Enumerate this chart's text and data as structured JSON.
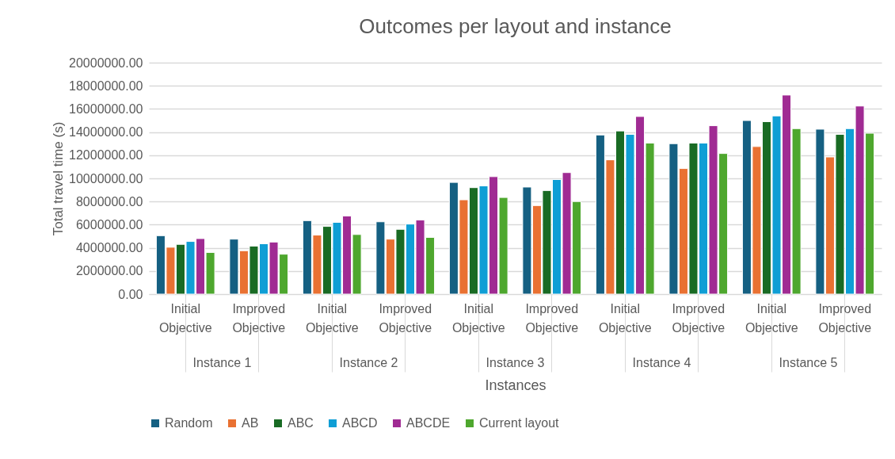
{
  "chart_data": {
    "type": "bar",
    "title": "Outcomes per layout and instance",
    "xlabel": "Instances",
    "ylabel": "Total travel time (s)",
    "categories": [
      "Initial Objective",
      "Improved Objective",
      "Initial Objective",
      "Improved Objective",
      "Initial Objective",
      "Improved Objective",
      "Initial Objective",
      "Improved Objective",
      "Initial Objective",
      "Improved Objective"
    ],
    "annotations": [
      "Instance 1",
      "Instance 2",
      "Instance 3",
      "Instance 4",
      "Instance  5"
    ],
    "series": [
      {
        "name": "Random",
        "color": "#156082",
        "values": [
          5050000,
          4750000,
          6350000,
          6250000,
          9650000,
          9250000,
          13750000,
          13000000,
          15000000,
          14250000
        ]
      },
      {
        "name": "AB",
        "color": "#e97132",
        "values": [
          4050000,
          3750000,
          5100000,
          4750000,
          8150000,
          7650000,
          11600000,
          10850000,
          12750000,
          11850000
        ]
      },
      {
        "name": "ABC",
        "color": "#196b24",
        "values": [
          4300000,
          4150000,
          5850000,
          5600000,
          9200000,
          8950000,
          14100000,
          13050000,
          14900000,
          13800000
        ]
      },
      {
        "name": "ABCD",
        "color": "#0f9ed5",
        "values": [
          4550000,
          4350000,
          6200000,
          6050000,
          9350000,
          9900000,
          13800000,
          13050000,
          15400000,
          14300000
        ]
      },
      {
        "name": "ABCDE",
        "color": "#a02b93",
        "values": [
          4800000,
          4500000,
          6750000,
          6400000,
          10150000,
          10500000,
          15350000,
          14550000,
          17200000,
          16250000
        ]
      },
      {
        "name": "Current layout",
        "color": "#4ea72e",
        "values": [
          3600000,
          3450000,
          5150000,
          4900000,
          8350000,
          8000000,
          13050000,
          12150000,
          14300000,
          13900000
        ]
      }
    ],
    "ylim": [
      0,
      20000000
    ],
    "yticks": [
      {
        "value": 0,
        "label": "0.00"
      },
      {
        "value": 2000000,
        "label": "2000000.00"
      },
      {
        "value": 4000000,
        "label": "4000000.00"
      },
      {
        "value": 6000000,
        "label": "6000000.00"
      },
      {
        "value": 8000000,
        "label": "8000000.00"
      },
      {
        "value": 10000000,
        "label": "10000000.00"
      },
      {
        "value": 12000000,
        "label": "12000000.00"
      },
      {
        "value": 14000000,
        "label": "14000000.00"
      },
      {
        "value": 16000000,
        "label": "16000000.00"
      },
      {
        "value": 18000000,
        "label": "18000000.00"
      },
      {
        "value": 20000000,
        "label": "20000000.00"
      }
    ],
    "grid": true,
    "legend": "bottom"
  }
}
